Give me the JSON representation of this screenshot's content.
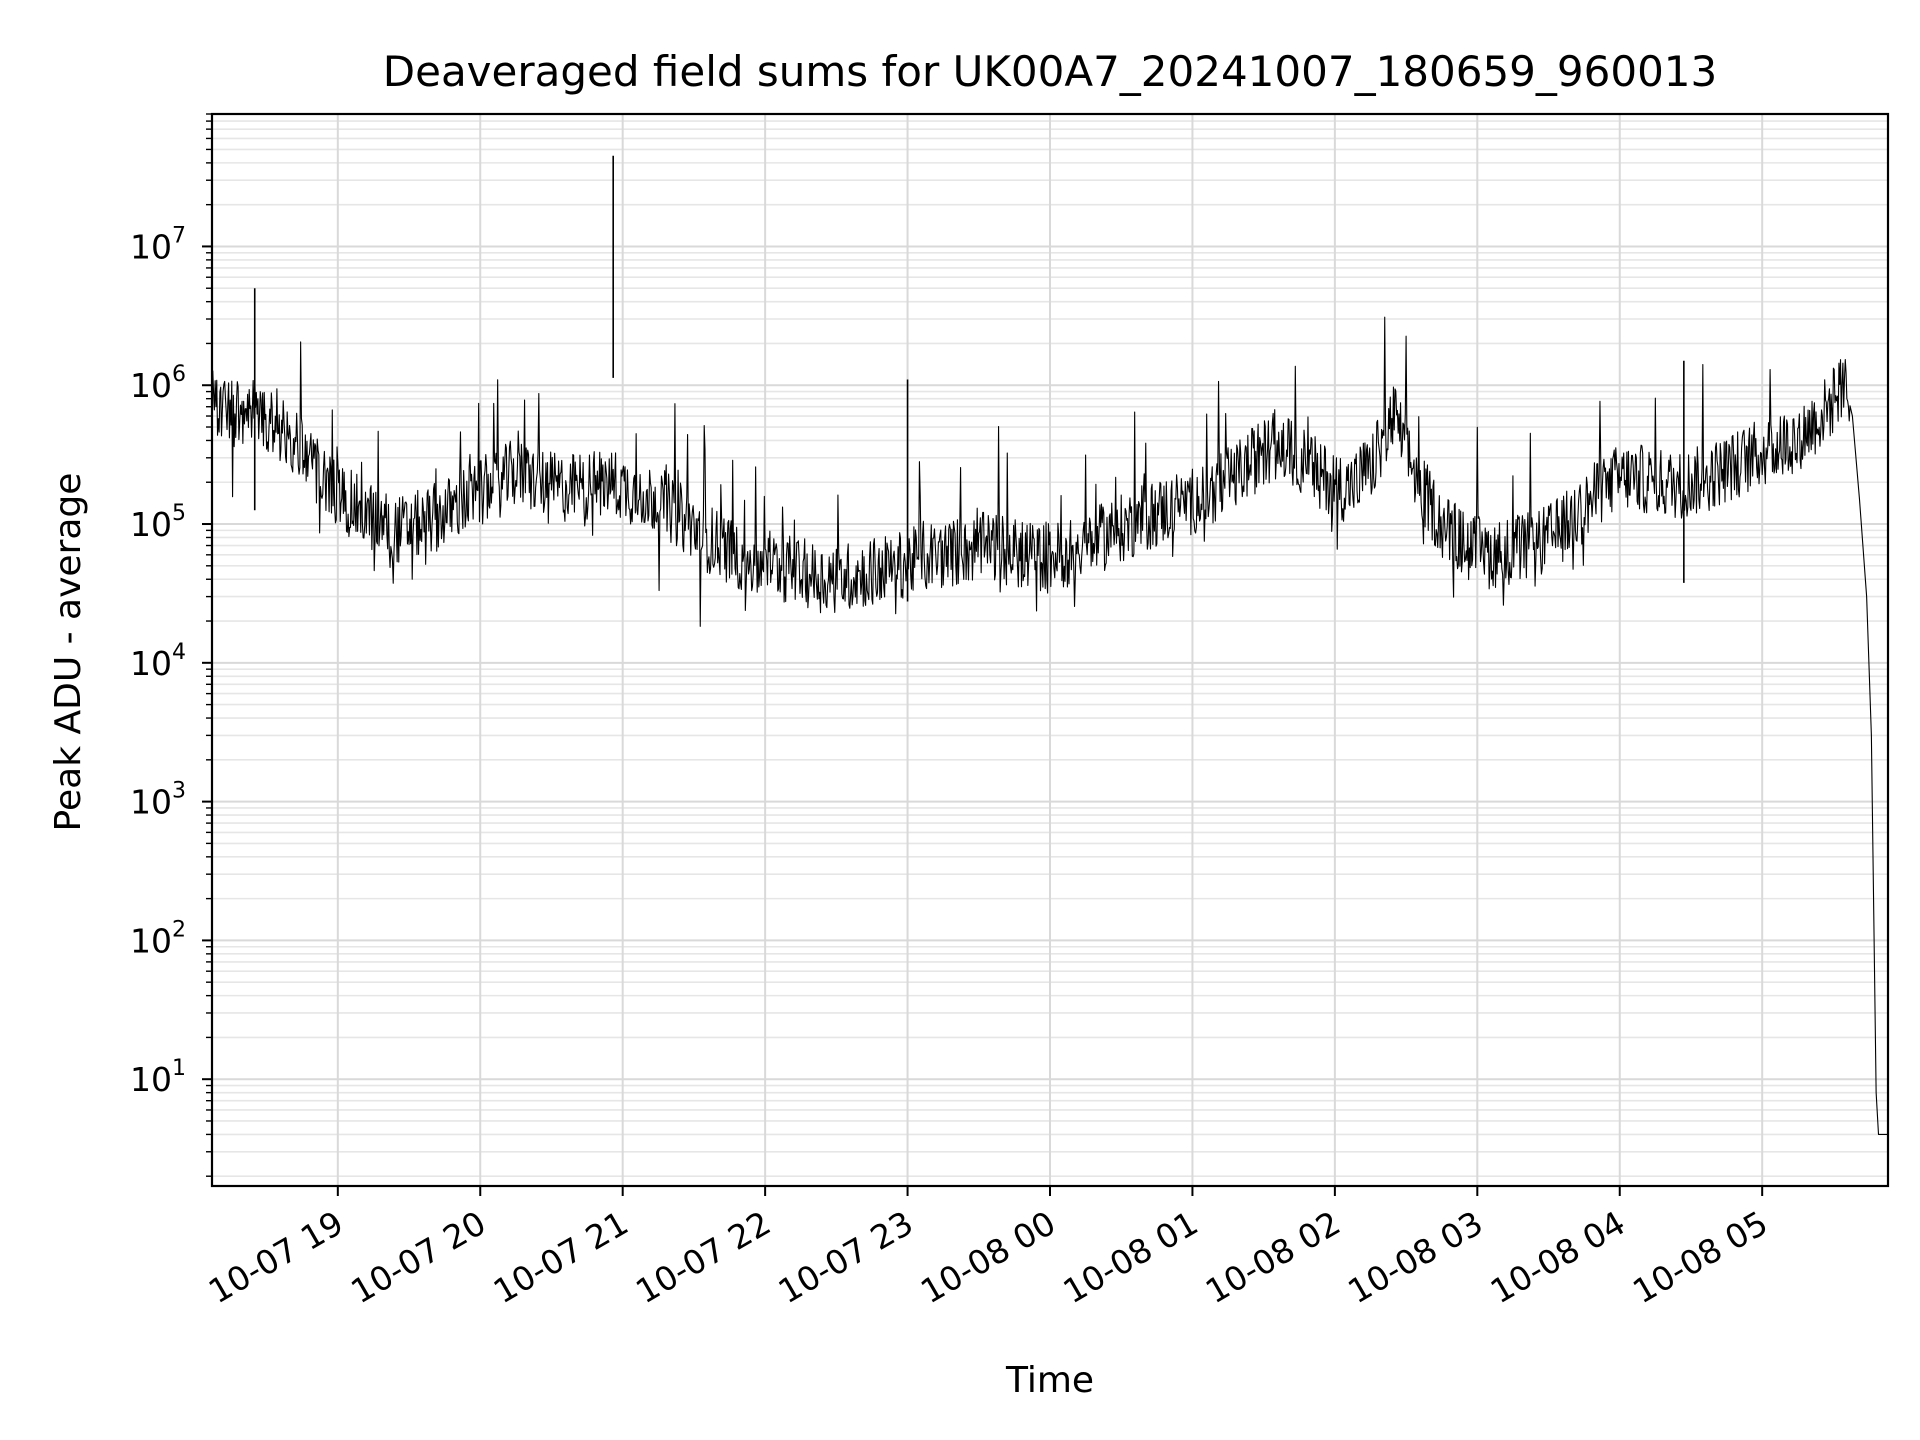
{
  "chart_data": {
    "type": "line",
    "title": "Deaveraged field sums for UK00A7_20241007_180659_960013",
    "xlabel": "Time",
    "ylabel": "Peak ADU - average",
    "yscale": "log",
    "grid": true,
    "legend": "none",
    "line_color": "#000000",
    "xlim": [
      "2024-10-07T18:07:00",
      "2024-10-08T05:53:00"
    ],
    "ylim": [
      1.7,
      90000000.0
    ],
    "x_tick_labels": [
      "10-07 19",
      "10-07 20",
      "10-07 21",
      "10-07 22",
      "10-07 23",
      "10-08 00",
      "10-08 01",
      "10-08 02",
      "10-08 03",
      "10-08 04",
      "10-08 05"
    ],
    "x_tick_times": [
      "2024-10-07T19:00",
      "2024-10-07T20:00",
      "2024-10-07T21:00",
      "2024-10-07T22:00",
      "2024-10-07T23:00",
      "2024-10-08T00:00",
      "2024-10-08T01:00",
      "2024-10-08T02:00",
      "2024-10-08T03:00",
      "2024-10-08T04:00",
      "2024-10-08T05:00"
    ],
    "y_tick_labels": [
      {
        "base": "10",
        "exp": "1",
        "value": 10
      },
      {
        "base": "10",
        "exp": "2",
        "value": 100
      },
      {
        "base": "10",
        "exp": "3",
        "value": 1000
      },
      {
        "base": "10",
        "exp": "4",
        "value": 10000
      },
      {
        "base": "10",
        "exp": "5",
        "value": 100000
      },
      {
        "base": "10",
        "exp": "6",
        "value": 1000000
      },
      {
        "base": "10",
        "exp": "7",
        "value": 10000000
      }
    ],
    "series": [
      {
        "x": [
          "2024-10-07T18:07",
          "2024-10-07T18:15",
          "2024-10-07T18:25",
          "2024-10-07T18:35",
          "2024-10-07T18:45",
          "2024-10-07T18:55",
          "2024-10-07T19:05",
          "2024-10-07T19:15",
          "2024-10-07T19:25",
          "2024-10-07T19:35",
          "2024-10-07T19:45",
          "2024-10-07T19:55",
          "2024-10-07T20:05",
          "2024-10-07T20:15",
          "2024-10-07T20:25",
          "2024-10-07T20:35",
          "2024-10-07T20:45",
          "2024-10-07T20:55",
          "2024-10-07T21:05",
          "2024-10-07T21:15",
          "2024-10-07T21:25",
          "2024-10-07T21:35",
          "2024-10-07T21:45",
          "2024-10-07T21:55",
          "2024-10-07T22:05",
          "2024-10-07T22:15",
          "2024-10-07T22:25",
          "2024-10-07T22:35",
          "2024-10-07T22:45",
          "2024-10-07T22:55",
          "2024-10-07T23:05",
          "2024-10-07T23:15",
          "2024-10-07T23:25",
          "2024-10-07T23:35",
          "2024-10-07T23:45",
          "2024-10-07T23:55",
          "2024-10-08T00:05",
          "2024-10-08T00:15",
          "2024-10-08T00:25",
          "2024-10-08T00:35",
          "2024-10-08T00:45",
          "2024-10-08T00:55",
          "2024-10-08T01:05",
          "2024-10-08T01:15",
          "2024-10-08T01:25",
          "2024-10-08T01:35",
          "2024-10-08T01:45",
          "2024-10-08T01:55",
          "2024-10-08T02:05",
          "2024-10-08T02:15",
          "2024-10-08T02:25",
          "2024-10-08T02:35",
          "2024-10-08T02:45",
          "2024-10-08T02:55",
          "2024-10-08T03:05",
          "2024-10-08T03:15",
          "2024-10-08T03:25",
          "2024-10-08T03:35",
          "2024-10-08T03:45",
          "2024-10-08T03:55",
          "2024-10-08T04:05",
          "2024-10-08T04:15",
          "2024-10-08T04:25",
          "2024-10-08T04:35",
          "2024-10-08T04:45",
          "2024-10-08T04:55",
          "2024-10-08T05:05",
          "2024-10-08T05:15",
          "2024-10-08T05:25",
          "2024-10-08T05:35",
          "2024-10-08T05:38",
          "2024-10-08T05:41",
          "2024-10-08T05:44",
          "2024-10-08T05:46",
          "2024-10-08T05:48",
          "2024-10-08T05:49",
          "2024-10-08T05:53"
        ],
        "values": [
          800000,
          600000,
          700000,
          500000,
          350000,
          200000,
          140000,
          110000,
          90000,
          100000,
          120000,
          150000,
          180000,
          240000,
          200000,
          180000,
          190000,
          200000,
          170000,
          150000,
          110000,
          80000,
          65000,
          50000,
          50000,
          45000,
          40000,
          42000,
          45000,
          50000,
          55000,
          60000,
          65000,
          70000,
          62000,
          58000,
          60000,
          70000,
          85000,
          100000,
          120000,
          140000,
          160000,
          200000,
          280000,
          380000,
          300000,
          220000,
          180000,
          250000,
          600000,
          200000,
          100000,
          70000,
          60000,
          65000,
          70000,
          90000,
          130000,
          200000,
          220000,
          200000,
          190000,
          210000,
          250000,
          300000,
          350000,
          420000,
          600000,
          1000000,
          600000,
          150000,
          30000,
          3000,
          8,
          4,
          4
        ]
      }
    ],
    "spikes": [
      {
        "x": "2024-10-07T18:25",
        "value": 5000000
      },
      {
        "x": "2024-10-07T20:56",
        "value": 45000000
      },
      {
        "x": "2024-10-07T23:00",
        "value": 1100000
      },
      {
        "x": "2024-10-08T04:27",
        "value": 1500000
      }
    ]
  }
}
